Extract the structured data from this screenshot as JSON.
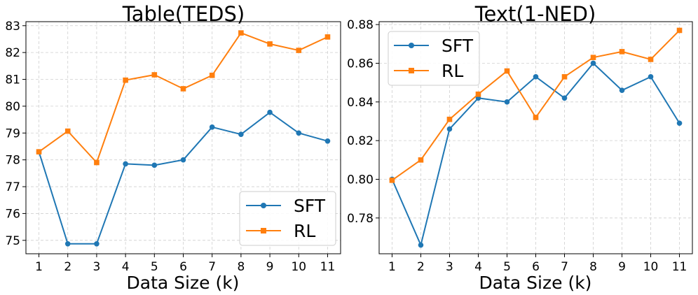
{
  "colors": {
    "sft": "#1f77b4",
    "rl": "#ff7f0e"
  },
  "chart_data": [
    {
      "type": "line",
      "title": "Table(TEDS)",
      "xlabel": "Data Size (k)",
      "ylabel": "",
      "x": [
        1,
        2,
        3,
        4,
        5,
        6,
        7,
        8,
        9,
        10,
        11
      ],
      "xticks": [
        "1",
        "2",
        "3",
        "4",
        "5",
        "6",
        "7",
        "8",
        "9",
        "10",
        "11"
      ],
      "xlim": [
        0.55,
        11.45
      ],
      "ylim": [
        74.5,
        83.15
      ],
      "yticks": [
        "75",
        "76",
        "77",
        "78",
        "79",
        "80",
        "81",
        "82",
        "83"
      ],
      "ytick_values": [
        75,
        76,
        77,
        78,
        79,
        80,
        81,
        82,
        83
      ],
      "grid": true,
      "legend_position": "lower-right",
      "series": [
        {
          "name": "SFT",
          "marker": "circle",
          "color_key": "sft",
          "values": [
            78.3,
            74.87,
            74.87,
            77.85,
            77.8,
            78.0,
            79.22,
            78.95,
            79.77,
            79.0,
            78.7
          ]
        },
        {
          "name": "RL",
          "marker": "square",
          "color_key": "rl",
          "values": [
            78.3,
            79.07,
            77.9,
            80.97,
            81.17,
            80.65,
            81.15,
            82.73,
            82.32,
            82.08,
            82.58
          ]
        }
      ]
    },
    {
      "type": "line",
      "title": "Text(1-NED)",
      "xlabel": "Data Size (k)",
      "ylabel": "",
      "x": [
        1,
        2,
        3,
        4,
        5,
        6,
        7,
        8,
        9,
        10,
        11
      ],
      "xticks": [
        "1",
        "2",
        "3",
        "4",
        "5",
        "6",
        "7",
        "8",
        "9",
        "10",
        "11"
      ],
      "xlim": [
        0.55,
        11.45
      ],
      "ylim": [
        0.7615,
        0.8815
      ],
      "yticks": [
        "0.78",
        "0.80",
        "0.82",
        "0.84",
        "0.86",
        "0.88"
      ],
      "ytick_values": [
        0.78,
        0.8,
        0.82,
        0.84,
        0.86,
        0.88
      ],
      "grid": true,
      "legend_position": "upper-left",
      "series": [
        {
          "name": "SFT",
          "marker": "circle",
          "color_key": "sft",
          "values": [
            0.8,
            0.766,
            0.826,
            0.842,
            0.84,
            0.853,
            0.842,
            0.86,
            0.846,
            0.853,
            0.829
          ]
        },
        {
          "name": "RL",
          "marker": "square",
          "color_key": "rl",
          "values": [
            0.7995,
            0.81,
            0.831,
            0.844,
            0.856,
            0.832,
            0.853,
            0.863,
            0.866,
            0.862,
            0.877
          ]
        }
      ]
    }
  ]
}
